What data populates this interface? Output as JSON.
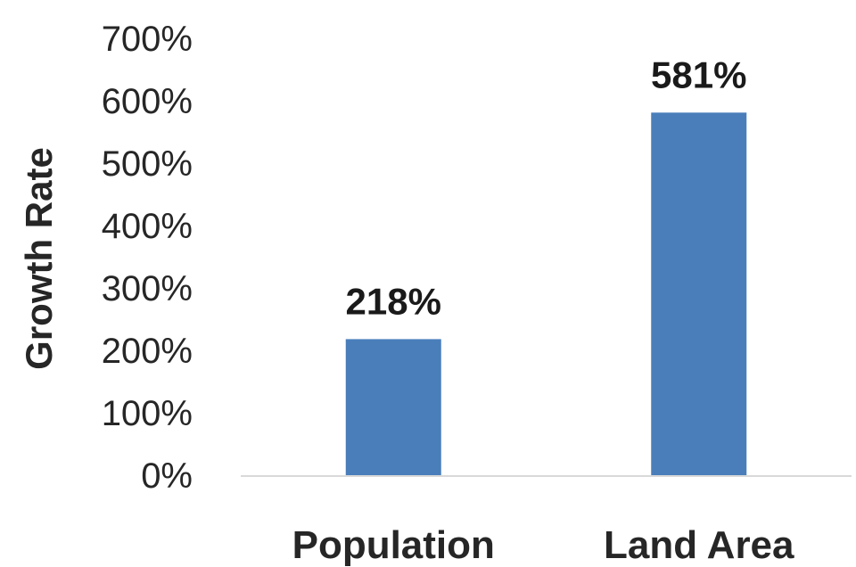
{
  "chart_data": {
    "type": "bar",
    "categories": [
      "Population",
      "Land Area"
    ],
    "values": [
      218,
      581
    ],
    "data_labels": [
      "218%",
      "581%"
    ],
    "ylabel": "Growth Rate",
    "ylim": [
      0,
      700
    ],
    "yticks": [
      "0%",
      "100%",
      "200%",
      "300%",
      "400%",
      "500%",
      "600%",
      "700%"
    ],
    "grid": false,
    "bar_color": "#4a7ebb",
    "axis_color": "#d9d9d9"
  }
}
